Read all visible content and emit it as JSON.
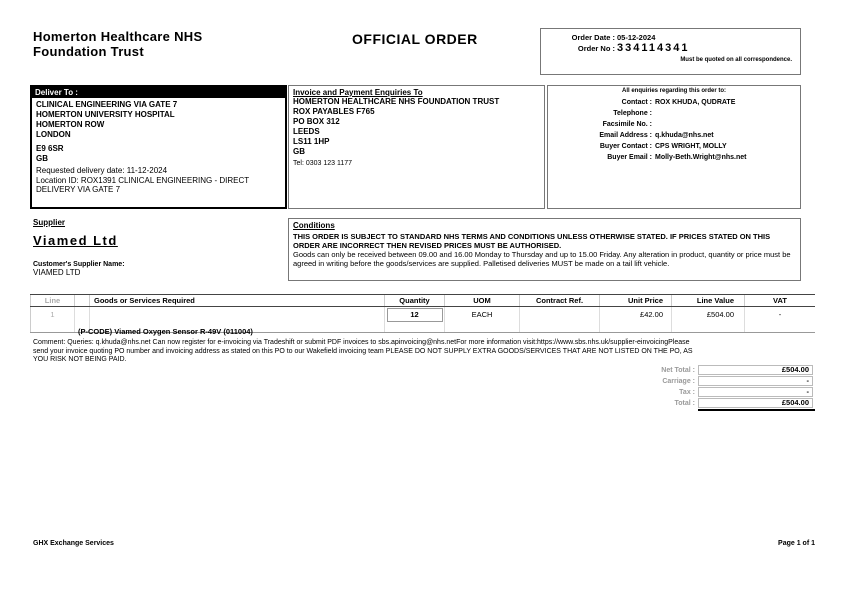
{
  "colors": {
    "deliver_header_bg": "#000000",
    "deliver_header_text": "#ffffff",
    "muted_label": "#9a9a9a"
  },
  "header": {
    "trust_name": "Homerton Healthcare NHS Foundation Trust",
    "title": "OFFICIAL ORDER",
    "order_date_label": "Order Date :",
    "order_date": "05-12-2024",
    "order_no_label": "Order No :",
    "order_no": "334114341",
    "quote_note": "Must be quoted on all correspondence."
  },
  "deliver_to": {
    "label": "Deliver To :",
    "lines": [
      "CLINICAL ENGINEERING VIA GATE 7",
      "HOMERTON UNIVERSITY HOSPITAL",
      "HOMERTON ROW",
      "LONDON"
    ],
    "postcode": "E9 6SR",
    "country": "GB",
    "requested_delivery": "Requested delivery date: 11-12-2024",
    "location_id": "Location ID: ROX1391 CLINICAL ENGINEERING - DIRECT DELIVERY VIA GATE 7"
  },
  "invoice_to": {
    "label": "Invoice and Payment Enquiries To",
    "lines": [
      "HOMERTON HEALTHCARE NHS FOUNDATION TRUST",
      "ROX PAYABLES F765",
      "PO BOX 312",
      "LEEDS",
      "LS11 1HP",
      "GB"
    ],
    "tel": "Tel: 0303 123 1177"
  },
  "enquiries": {
    "heading": "All enquiries regarding this order to:",
    "rows": [
      {
        "label": "Contact :",
        "value": "ROX KHUDA, QUDRATE"
      },
      {
        "label": "Telephone :",
        "value": ""
      },
      {
        "label": "Facsimile No. :",
        "value": ""
      },
      {
        "label": "Email Address :",
        "value": "q.khuda@nhs.net"
      },
      {
        "label": "Buyer Contact :",
        "value": "CPS WRIGHT, MOLLY"
      },
      {
        "label": "Buyer Email :",
        "value": "Molly-Beth.Wright@nhs.net"
      }
    ]
  },
  "supplier": {
    "label": "Supplier",
    "name": "Viamed Ltd",
    "customer_supplier_label": "Customer's Supplier Name:",
    "customer_supplier_name": "VIAMED LTD"
  },
  "conditions": {
    "label": "Conditions",
    "para1": "THIS ORDER IS SUBJECT TO STANDARD NHS TERMS AND CONDITIONS UNLESS OTHERWISE STATED. IF PRICES STATED ON THIS ORDER ARE INCORRECT THEN REVISED PRICES MUST BE AUTHORISED.",
    "para2": "Goods can only be received between 09.00 and 16.00 Monday to Thursday and up to 15.00 Friday. Any alteration in product, quantity or price must be agreed in writing before the goods/services are supplied. Palletised deliveries MUST be made on a tail lift vehicle."
  },
  "order_table": {
    "headers": [
      "Line",
      "Goods or Services Required",
      "Quantity",
      "UOM",
      "Contract Ref.",
      "Unit Price",
      "Line Value",
      "VAT"
    ],
    "rows": [
      {
        "line": "1",
        "description": "(P-CODE) Viamed Oxygen Sensor R-49V (011004)",
        "quantity": "12",
        "uom": "EACH",
        "contract_ref": "",
        "unit_price": "£42.00",
        "line_value": "£504.00",
        "vat": "-"
      }
    ]
  },
  "comment": "Comment: Queries: q.khuda@nhs.net Can now register for e-invoicing via Tradeshift or submit PDF invoices to sbs.apinvoicing@nhs.netFor more information visit:https://www.sbs.nhs.uk/supplier-einvoicingPlease send your invoice quoting PO number and invoicing address as stated on this PO to our Wakefield invoicing team PLEASE DO NOT SUPPLY EXTRA GOODS/SERVICES THAT ARE NOT LISTED ON THE PO, AS YOU RISK NOT BEING PAID.",
  "totals": {
    "rows": [
      {
        "label": "Net Total :",
        "value": "£504.00"
      },
      {
        "label": "Carriage :",
        "value": "-"
      },
      {
        "label": "Tax :",
        "value": "-"
      },
      {
        "label": "Total :",
        "value": "£504.00"
      }
    ]
  },
  "footer": {
    "left": "GHX Exchange Services",
    "right": "Page 1 of 1"
  }
}
